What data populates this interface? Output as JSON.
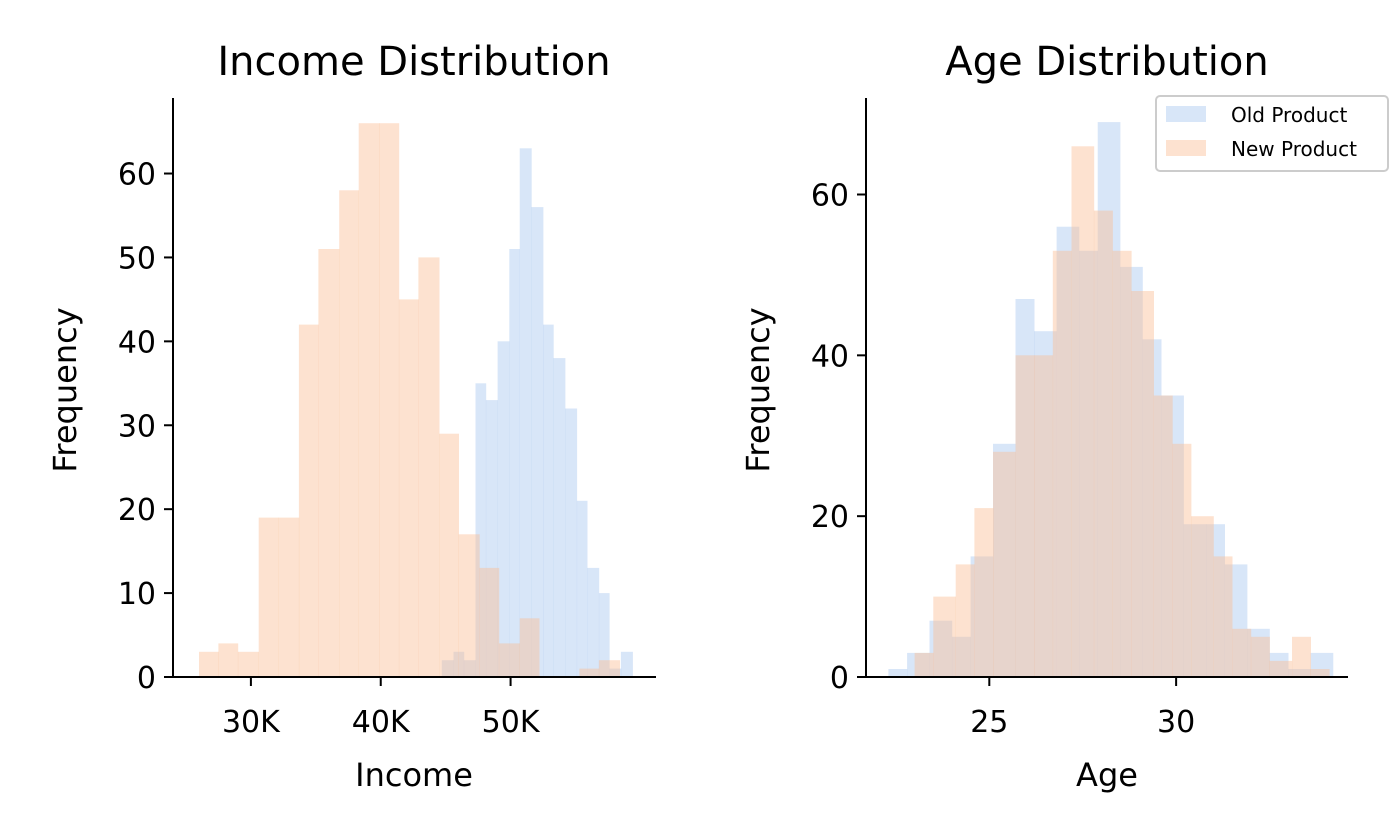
{
  "chart_data": [
    {
      "type": "histogram",
      "title": "Income Distribution",
      "xlabel": "Income",
      "ylabel": "Frequency",
      "xlim": [
        24000,
        61200
      ],
      "ylim": [
        0,
        69
      ],
      "xticks": [
        {
          "value": 30000,
          "label": "30K"
        },
        {
          "value": 40000,
          "label": "40K"
        },
        {
          "value": 50000,
          "label": "50K"
        }
      ],
      "yticks": [
        0,
        10,
        20,
        30,
        40,
        50,
        60
      ],
      "grid": false,
      "series": [
        {
          "name": "Old Product",
          "color": "#a8c8f0",
          "bins": [
            [
              44700,
              45600,
              2
            ],
            [
              45600,
              46400,
              3
            ],
            [
              46400,
              47300,
              2
            ],
            [
              47300,
              48100,
              35
            ],
            [
              48100,
              49000,
              33
            ],
            [
              49000,
              49900,
              40
            ],
            [
              49900,
              50700,
              51
            ],
            [
              50700,
              51600,
              63
            ],
            [
              51600,
              52500,
              56
            ],
            [
              52500,
              53300,
              42
            ],
            [
              53300,
              54200,
              38
            ],
            [
              54200,
              55100,
              32
            ],
            [
              55100,
              55900,
              21
            ],
            [
              55900,
              56800,
              13
            ],
            [
              56800,
              57600,
              10
            ],
            [
              57600,
              58500,
              1
            ],
            [
              58500,
              59400,
              3
            ]
          ]
        },
        {
          "name": "New Product",
          "color": "#fbbe96",
          "bins": [
            [
              26000,
              27500,
              3
            ],
            [
              27500,
              29000,
              4
            ],
            [
              29000,
              30600,
              3
            ],
            [
              30600,
              32100,
              19
            ],
            [
              32100,
              33700,
              19
            ],
            [
              33700,
              35200,
              42
            ],
            [
              35200,
              36800,
              51
            ],
            [
              36800,
              38300,
              58
            ],
            [
              38300,
              39900,
              66
            ],
            [
              39900,
              41400,
              66
            ],
            [
              41400,
              42900,
              45
            ],
            [
              42900,
              44500,
              50
            ],
            [
              44500,
              46000,
              29
            ],
            [
              46000,
              47600,
              17
            ],
            [
              47600,
              49100,
              13
            ],
            [
              49100,
              50700,
              4
            ],
            [
              50700,
              52200,
              7
            ],
            [
              52200,
              53800,
              0
            ],
            [
              53800,
              55300,
              0
            ],
            [
              55300,
              56800,
              1
            ],
            [
              56800,
              58400,
              2
            ]
          ]
        }
      ]
    },
    {
      "type": "histogram",
      "title": "Age Distribution",
      "xlabel": "Age",
      "ylabel": "Frequency",
      "xlim": [
        21.7,
        34.6
      ],
      "ylim": [
        0,
        72
      ],
      "xticks": [
        {
          "value": 25,
          "label": "25"
        },
        {
          "value": 30,
          "label": "30"
        }
      ],
      "yticks": [
        0,
        20,
        40,
        60
      ],
      "grid": false,
      "legend": {
        "position": "top-right",
        "entries": [
          "Old Product",
          "New Product"
        ]
      },
      "series": [
        {
          "name": "Old Product",
          "color": "#a8c8f0",
          "bins": [
            [
              22.3,
              22.8,
              1
            ],
            [
              22.8,
              23.4,
              3
            ],
            [
              23.4,
              24.0,
              7
            ],
            [
              24.0,
              24.5,
              5
            ],
            [
              24.5,
              25.1,
              15
            ],
            [
              25.1,
              25.7,
              29
            ],
            [
              25.7,
              26.2,
              47
            ],
            [
              26.2,
              26.8,
              43
            ],
            [
              26.8,
              27.4,
              56
            ],
            [
              27.4,
              27.9,
              53
            ],
            [
              27.9,
              28.5,
              69
            ],
            [
              28.5,
              29.1,
              51
            ],
            [
              29.1,
              29.6,
              42
            ],
            [
              29.6,
              30.2,
              35
            ],
            [
              30.2,
              30.8,
              19
            ],
            [
              30.8,
              31.3,
              19
            ],
            [
              31.3,
              31.9,
              14
            ],
            [
              31.9,
              32.5,
              6
            ],
            [
              32.5,
              33.0,
              3
            ],
            [
              33.0,
              33.6,
              1
            ],
            [
              33.6,
              34.2,
              3
            ]
          ]
        },
        {
          "name": "New Product",
          "color": "#fbbe96",
          "bins": [
            [
              23.0,
              23.5,
              3
            ],
            [
              23.5,
              24.1,
              10
            ],
            [
              24.1,
              24.6,
              14
            ],
            [
              24.6,
              25.1,
              21
            ],
            [
              25.1,
              25.7,
              28
            ],
            [
              25.7,
              26.2,
              40
            ],
            [
              26.2,
              26.7,
              40
            ],
            [
              26.7,
              27.2,
              53
            ],
            [
              27.2,
              27.8,
              66
            ],
            [
              27.8,
              28.3,
              58
            ],
            [
              28.3,
              28.8,
              53
            ],
            [
              28.8,
              29.4,
              48
            ],
            [
              29.4,
              29.9,
              35
            ],
            [
              29.9,
              30.4,
              29
            ],
            [
              30.4,
              31.0,
              20
            ],
            [
              31.0,
              31.5,
              15
            ],
            [
              31.5,
              32.0,
              6
            ],
            [
              32.0,
              32.5,
              5
            ],
            [
              32.5,
              33.1,
              2
            ],
            [
              33.1,
              33.6,
              5
            ],
            [
              33.6,
              34.1,
              1
            ]
          ]
        }
      ]
    }
  ]
}
